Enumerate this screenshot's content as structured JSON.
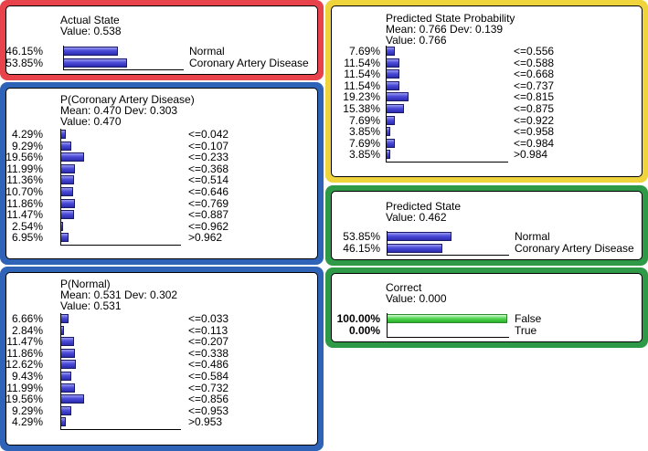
{
  "actual_state": {
    "title": "Actual State",
    "value_line": "Value: 0.538",
    "border_color": "#e8434b",
    "rows": [
      {
        "pct": "46.15%",
        "state": "Normal",
        "fraction": 0.4615
      },
      {
        "pct": "53.85%",
        "state": "Coronary Artery Disease",
        "fraction": 0.5385
      }
    ]
  },
  "p_cad": {
    "title": "P(Coronary Artery Disease)",
    "mean_line": "Mean: 0.470 Dev: 0.303",
    "value_line": "Value: 0.470",
    "border_color": "#2f63b8",
    "rows": [
      {
        "pct": "4.29%",
        "state": "<=0.042",
        "fraction": 0.0429
      },
      {
        "pct": "9.29%",
        "state": "<=0.107",
        "fraction": 0.0929
      },
      {
        "pct": "19.56%",
        "state": "<=0.233",
        "fraction": 0.1956
      },
      {
        "pct": "11.99%",
        "state": "<=0.368",
        "fraction": 0.1199
      },
      {
        "pct": "11.36%",
        "state": "<=0.514",
        "fraction": 0.1136
      },
      {
        "pct": "10.70%",
        "state": "<=0.646",
        "fraction": 0.107
      },
      {
        "pct": "11.86%",
        "state": "<=0.769",
        "fraction": 0.1186
      },
      {
        "pct": "11.47%",
        "state": "<=0.887",
        "fraction": 0.1147
      },
      {
        "pct": "2.54%",
        "state": "<=0.962",
        "fraction": 0.0254
      },
      {
        "pct": "6.95%",
        "state": ">0.962",
        "fraction": 0.0695
      }
    ]
  },
  "p_normal": {
    "title": "P(Normal)",
    "mean_line": "Mean: 0.531 Dev: 0.302",
    "value_line": "Value: 0.531",
    "border_color": "#2f63b8",
    "rows": [
      {
        "pct": "6.66%",
        "state": "<=0.033",
        "fraction": 0.0666
      },
      {
        "pct": "2.84%",
        "state": "<=0.113",
        "fraction": 0.0284
      },
      {
        "pct": "11.47%",
        "state": "<=0.207",
        "fraction": 0.1147
      },
      {
        "pct": "11.86%",
        "state": "<=0.338",
        "fraction": 0.1186
      },
      {
        "pct": "12.62%",
        "state": "<=0.486",
        "fraction": 0.1262
      },
      {
        "pct": "9.43%",
        "state": "<=0.584",
        "fraction": 0.0943
      },
      {
        "pct": "11.99%",
        "state": "<=0.732",
        "fraction": 0.1199
      },
      {
        "pct": "19.56%",
        "state": "<=0.856",
        "fraction": 0.1956
      },
      {
        "pct": "9.29%",
        "state": "<=0.953",
        "fraction": 0.0929
      },
      {
        "pct": "4.29%",
        "state": ">0.953",
        "fraction": 0.0429
      }
    ]
  },
  "pred_prob": {
    "title": "Predicted State Probability",
    "mean_line": "Mean: 0.766 Dev: 0.139",
    "value_line": "Value: 0.766",
    "border_color": "#f0d43c",
    "rows": [
      {
        "pct": "7.69%",
        "state": "<=0.556",
        "fraction": 0.0769
      },
      {
        "pct": "11.54%",
        "state": "<=0.588",
        "fraction": 0.1154
      },
      {
        "pct": "11.54%",
        "state": "<=0.668",
        "fraction": 0.1154
      },
      {
        "pct": "11.54%",
        "state": "<=0.737",
        "fraction": 0.1154
      },
      {
        "pct": "19.23%",
        "state": "<=0.815",
        "fraction": 0.1923
      },
      {
        "pct": "15.38%",
        "state": "<=0.875",
        "fraction": 0.1538
      },
      {
        "pct": "7.69%",
        "state": "<=0.922",
        "fraction": 0.0769
      },
      {
        "pct": "3.85%",
        "state": "<=0.958",
        "fraction": 0.0385
      },
      {
        "pct": "7.69%",
        "state": "<=0.984",
        "fraction": 0.0769
      },
      {
        "pct": "3.85%",
        "state": ">0.984",
        "fraction": 0.0385
      }
    ]
  },
  "pred_state": {
    "title": "Predicted State",
    "value_line": "Value: 0.462",
    "border_color": "#2e9a48",
    "rows": [
      {
        "pct": "53.85%",
        "state": "Normal",
        "fraction": 0.5385
      },
      {
        "pct": "46.15%",
        "state": "Coronary Artery Disease",
        "fraction": 0.4615
      }
    ]
  },
  "correct": {
    "title": "Correct",
    "value_line": "Value: 0.000",
    "border_color": "#2e9a48",
    "rows": [
      {
        "pct": "100.00%",
        "state": "False",
        "fraction": 1.0
      },
      {
        "pct": "0.00%",
        "state": "True",
        "fraction": 0.0
      }
    ]
  }
}
